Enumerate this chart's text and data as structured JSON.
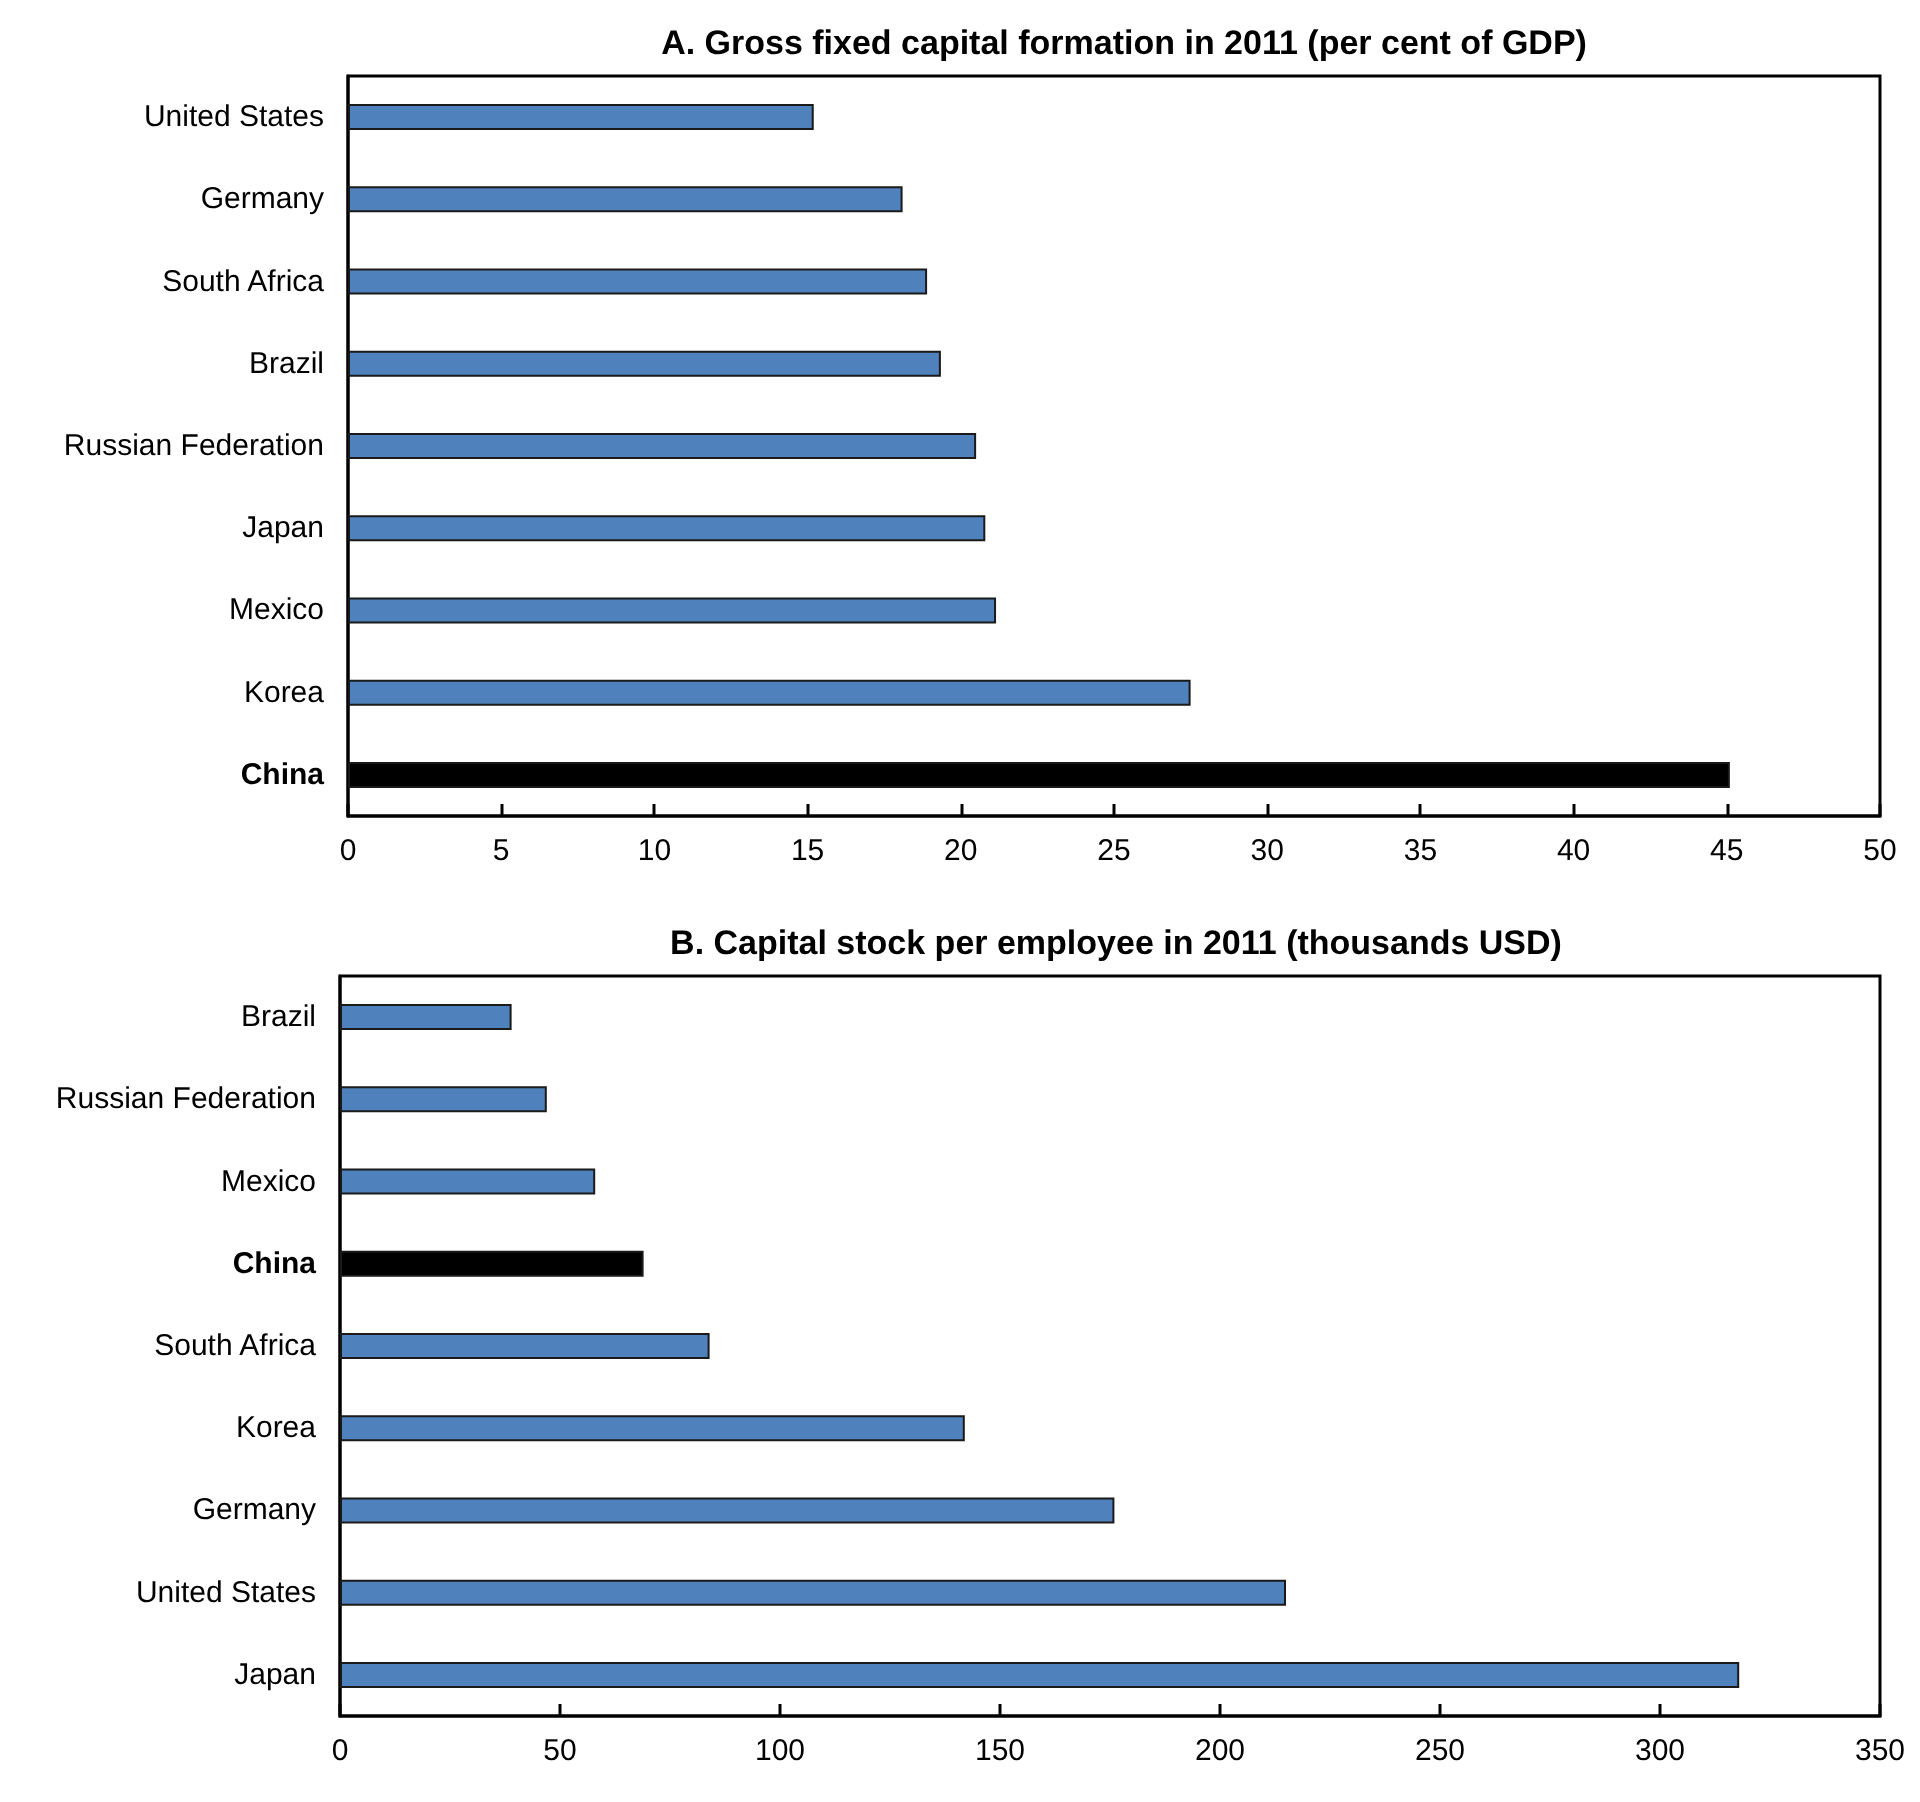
{
  "chart_data": [
    {
      "type": "bar",
      "orientation": "horizontal",
      "title": "A. Gross fixed capital formation in 2011 (per cent of GDP)",
      "categories": [
        "United States",
        "Germany",
        "South Africa",
        "Brazil",
        "Russian Federation",
        "Japan",
        "Mexico",
        "Korea",
        "China"
      ],
      "values": [
        15.2,
        18.1,
        18.9,
        19.35,
        20.5,
        20.8,
        21.15,
        27.5,
        45.1
      ],
      "colors": [
        "#4f81bd",
        "#4f81bd",
        "#4f81bd",
        "#4f81bd",
        "#4f81bd",
        "#4f81bd",
        "#4f81bd",
        "#4f81bd",
        "#000000"
      ],
      "xlim": [
        0,
        50
      ],
      "xticks": [
        0,
        5,
        10,
        15,
        20,
        25,
        30,
        35,
        40,
        45,
        50
      ]
    },
    {
      "type": "bar",
      "orientation": "horizontal",
      "title": "B. Capital stock per employee in 2011 (thousands USD)",
      "categories": [
        "Brazil",
        "Russian Federation",
        "Mexico",
        "China",
        "South Africa",
        "Korea",
        "Germany",
        "United States",
        "Japan"
      ],
      "values": [
        39,
        47,
        58,
        69,
        84,
        142,
        176,
        215,
        318
      ],
      "colors": [
        "#4f81bd",
        "#4f81bd",
        "#4f81bd",
        "#000000",
        "#4f81bd",
        "#4f81bd",
        "#4f81bd",
        "#4f81bd",
        "#4f81bd"
      ],
      "xlim": [
        0,
        350
      ],
      "xticks": [
        0,
        50,
        100,
        150,
        200,
        250,
        300,
        350
      ]
    }
  ]
}
